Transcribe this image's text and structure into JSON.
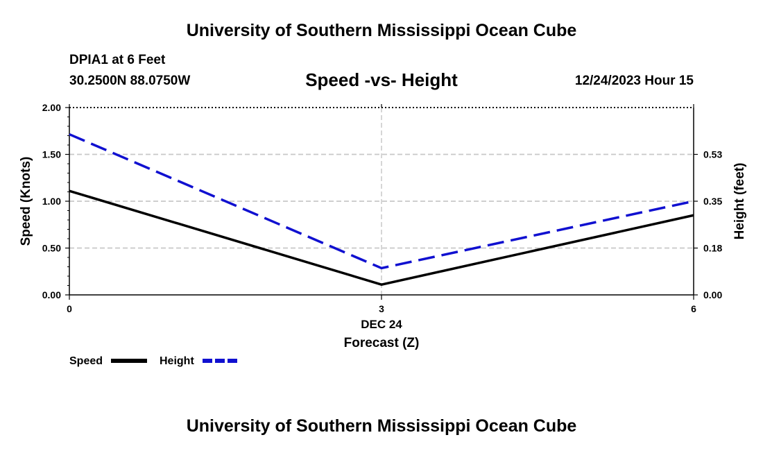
{
  "page": {
    "title_top": "University of Southern Mississippi Ocean Cube",
    "title_bottom": "University of Southern Mississippi Ocean Cube",
    "station": "DPIA1 at 6 Feet",
    "coords": "30.2500N  88.0750W",
    "datetime": "12/24/2023 Hour 15"
  },
  "chart_data": {
    "type": "line",
    "title": "Speed -vs- Height",
    "xlabel": "Forecast (Z)",
    "xsublabel": "DEC 24",
    "x": [
      0,
      3,
      6
    ],
    "x_ticks": [
      "0",
      "3",
      "6"
    ],
    "xlim": [
      0,
      6
    ],
    "y_left": {
      "label": "Speed (Knots)",
      "ylim": [
        0,
        2.0
      ],
      "ticks": [
        "0.00",
        "0.50",
        "1.00",
        "1.50",
        "2.00"
      ],
      "tick_values": [
        0,
        0.5,
        1.0,
        1.5,
        2.0
      ]
    },
    "y_right": {
      "label": "Height (feet)",
      "ylim": [
        0,
        0.7
      ],
      "ticks": [
        "0.00",
        "0.18",
        "0.35",
        "0.53"
      ],
      "tick_values": [
        0,
        0.175,
        0.35,
        0.525
      ]
    },
    "grid": true,
    "series": [
      {
        "name": "Speed",
        "axis": "left",
        "values": [
          1.11,
          0.11,
          0.85
        ],
        "color": "#000000",
        "style": "solid"
      },
      {
        "name": "Height",
        "axis": "right",
        "values": [
          0.6,
          0.1,
          0.35
        ],
        "color": "#1010d0",
        "style": "dashed"
      }
    ],
    "legend": [
      "Speed",
      "Height"
    ]
  }
}
